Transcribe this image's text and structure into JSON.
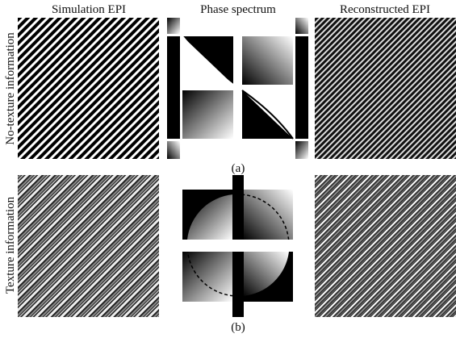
{
  "headers": [
    "Simulation EPI",
    "Phase spectrum",
    "Reconstructed EPI"
  ],
  "rows": [
    {
      "label": "No-texture information",
      "caption": "(a)"
    },
    {
      "label": "Texture information",
      "caption": "(b)"
    }
  ]
}
